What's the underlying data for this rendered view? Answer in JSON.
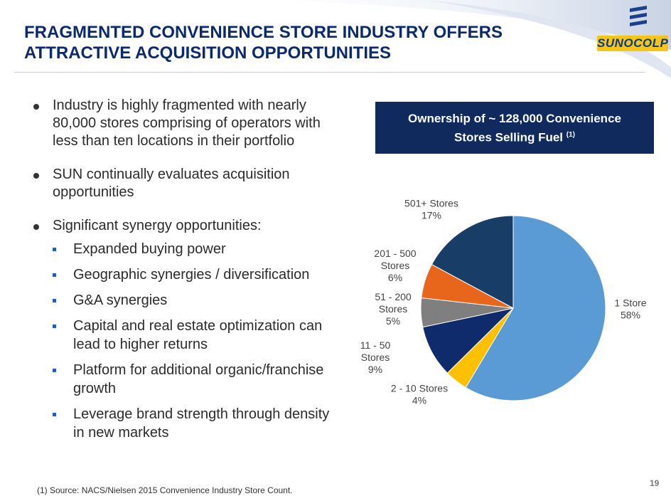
{
  "header": {
    "title_line1": "FRAGMENTED CONVENIENCE STORE INDUSTRY OFFERS",
    "title_line2": "ATTRACTIVE ACQUISITION OPPORTUNITIES",
    "logo_text": "SUNOCOLP"
  },
  "bullets": {
    "b1": "Industry is highly fragmented with nearly 80,000 stores comprising of operators with less than ten locations in their portfolio",
    "b2": "SUN continually evaluates acquisition opportunities",
    "b3": "Significant synergy opportunities:",
    "subs": [
      "Expanded buying power",
      "Geographic synergies / diversification",
      "G&A synergies",
      "Capital and real estate optimization can lead to higher returns",
      "Platform for additional organic/franchise growth",
      "Leverage brand strength through density in new markets"
    ]
  },
  "chart_box": {
    "line1": "Ownership of ~ 128,000 Convenience",
    "line2": "Stores Selling Fuel",
    "sup": "(1)"
  },
  "chart_data": {
    "type": "pie",
    "title": "Ownership of ~ 128,000 Convenience Stores Selling Fuel (1)",
    "slices": [
      {
        "label_lines": [
          "1 Store"
        ],
        "pct_label": "58%",
        "value": 58,
        "color": "#5b9bd5"
      },
      {
        "label_lines": [
          "2 - 10 Stores"
        ],
        "pct_label": "4%",
        "value": 4,
        "color": "#ffc000"
      },
      {
        "label_lines": [
          "11 - 50",
          "Stores"
        ],
        "pct_label": "9%",
        "value": 9,
        "color": "#0f2b6b"
      },
      {
        "label_lines": [
          "51 - 200",
          "Stores"
        ],
        "pct_label": "5%",
        "value": 5,
        "color": "#7f7f7f"
      },
      {
        "label_lines": [
          "201 - 500",
          "Stores"
        ],
        "pct_label": "6%",
        "value": 6,
        "color": "#e8661c"
      },
      {
        "label_lines": [
          "501+ Stores"
        ],
        "pct_label": "17%",
        "value": 17,
        "color": "#183d66"
      }
    ]
  },
  "footnote": "(1) Source: NACS/Nielsen 2015 Convenience Industry Store Count.",
  "page_number": "19"
}
